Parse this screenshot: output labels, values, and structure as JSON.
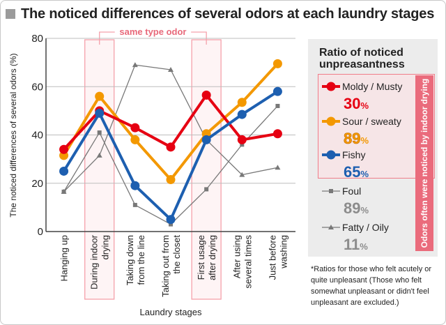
{
  "title": "The noticed differences of several odors at each laundry stages",
  "annotation": "same type odor",
  "legend_title": "Ratio of noticed unpreasantness",
  "side_label": "Odors often were noticed by indoor drying",
  "note": "*Ratios for those who felt acutely or quite unpleasant (Those who felt somewhat unpleasant or didn't feel unpleasant are excluded.)",
  "colors": {
    "moldy": "#e60012",
    "sour": "#f39800",
    "fishy": "#1d5fb0",
    "foul": "#787878",
    "fatty": "#787878",
    "highlight_band": "#f5a0aa",
    "legend_panel": "#ececec",
    "side_bar": "#ea6b7c"
  },
  "chart_data": {
    "type": "line",
    "title": "The noticed differences of several odors at each laundry stages",
    "xlabel": "Laundry stages",
    "ylabel": "The noticed differences of several odors  (%)",
    "ylim": [
      0,
      80
    ],
    "yticks": [
      0,
      20,
      40,
      60,
      80
    ],
    "grid": true,
    "categories": [
      [
        "Hanging up"
      ],
      [
        "During indoor",
        "drying"
      ],
      [
        "Taking down",
        "from the line"
      ],
      [
        "Taking out from",
        "the closet"
      ],
      [
        "First usage",
        "after drying"
      ],
      [
        "After using",
        "several times"
      ],
      [
        "Just before",
        "washing"
      ]
    ],
    "highlighted_categories": [
      1,
      4
    ],
    "series": [
      {
        "key": "foul",
        "name": "Foul",
        "ratio": "89",
        "ratio_unit": "%",
        "marker": "square",
        "style": "thin",
        "values": [
          16.5,
          41,
          11,
          3,
          17.5,
          36,
          52
        ]
      },
      {
        "key": "fatty",
        "name": "Fatty / Oily",
        "ratio": "11",
        "ratio_unit": "%",
        "marker": "triangle",
        "style": "thin",
        "values": [
          16.5,
          31.5,
          69,
          67,
          38,
          23.5,
          26.5
        ]
      },
      {
        "key": "sour",
        "name": "Sour / sweaty",
        "ratio": "89",
        "ratio_unit": "%",
        "marker": "circle",
        "style": "thick",
        "values": [
          31.5,
          56,
          38,
          21.5,
          40.5,
          53.5,
          69.5
        ]
      },
      {
        "key": "moldy",
        "name": "Moldy / Musty",
        "ratio": "30",
        "ratio_unit": "%",
        "marker": "circle",
        "style": "thick",
        "values": [
          34,
          50,
          43,
          35,
          56.5,
          38,
          40.5
        ]
      },
      {
        "key": "fishy",
        "name": "Fishy",
        "ratio": "65",
        "ratio_unit": "%",
        "marker": "circle",
        "style": "thick",
        "values": [
          25,
          49,
          19,
          5,
          38,
          48.5,
          58
        ]
      }
    ],
    "legend_order": [
      "moldy",
      "sour",
      "fishy",
      "foul",
      "fatty"
    ],
    "legend_position": "right"
  }
}
